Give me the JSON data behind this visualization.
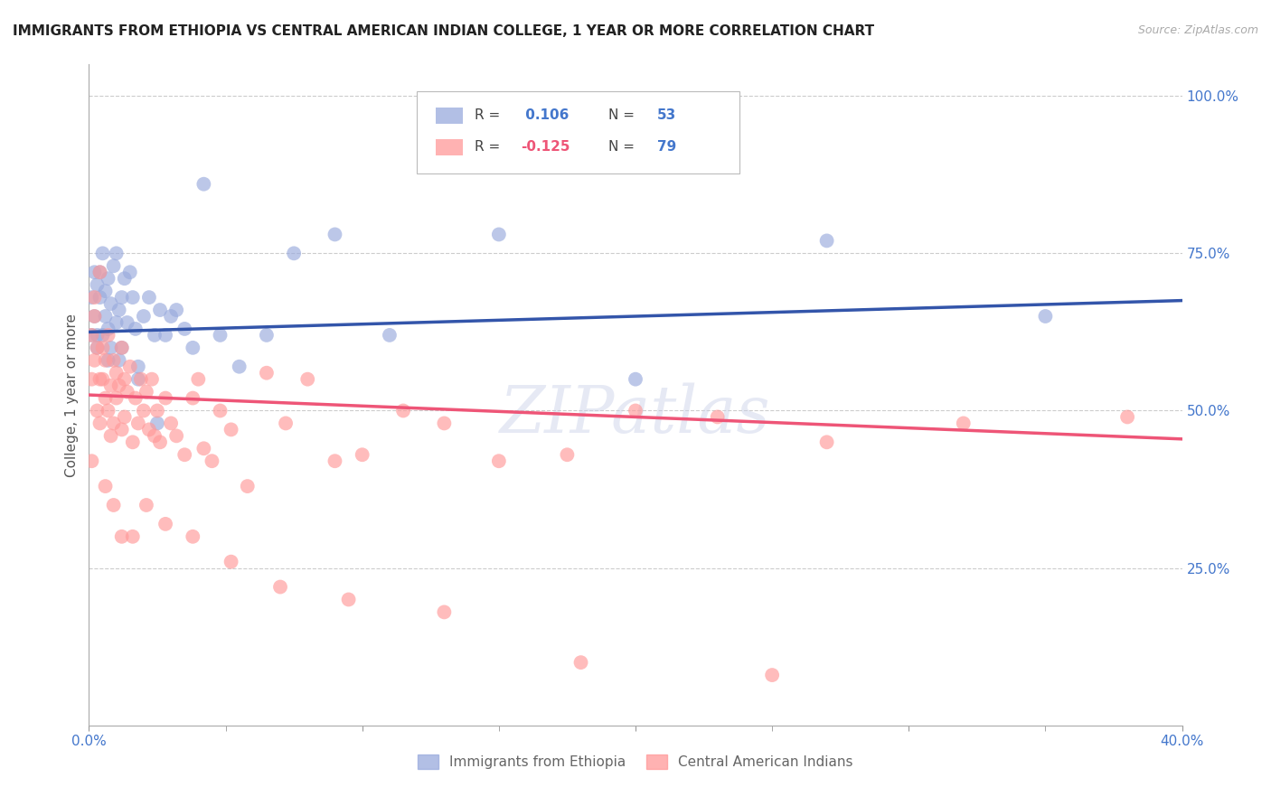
{
  "title": "IMMIGRANTS FROM ETHIOPIA VS CENTRAL AMERICAN INDIAN COLLEGE, 1 YEAR OR MORE CORRELATION CHART",
  "source": "Source: ZipAtlas.com",
  "ylabel": "College, 1 year or more",
  "ytick_labels": [
    "100.0%",
    "75.0%",
    "50.0%",
    "25.0%"
  ],
  "ytick_values": [
    1.0,
    0.75,
    0.5,
    0.25
  ],
  "xmin": 0.0,
  "xmax": 0.4,
  "ymin": 0.0,
  "ymax": 1.05,
  "color_blue": "#99AADD",
  "color_pink": "#FF9999",
  "color_blue_line": "#3355AA",
  "color_pink_line": "#EE5577",
  "color_text_blue": "#4477CC",
  "watermark": "ZIPatlas",
  "ethiopia_x": [
    0.001,
    0.001,
    0.002,
    0.002,
    0.003,
    0.003,
    0.004,
    0.004,
    0.005,
    0.005,
    0.006,
    0.006,
    0.007,
    0.007,
    0.008,
    0.008,
    0.009,
    0.01,
    0.01,
    0.011,
    0.011,
    0.012,
    0.013,
    0.014,
    0.015,
    0.016,
    0.017,
    0.018,
    0.02,
    0.022,
    0.024,
    0.026,
    0.028,
    0.03,
    0.032,
    0.035,
    0.038,
    0.042,
    0.048,
    0.055,
    0.065,
    0.075,
    0.09,
    0.11,
    0.15,
    0.2,
    0.27,
    0.35,
    0.003,
    0.007,
    0.012,
    0.018,
    0.025
  ],
  "ethiopia_y": [
    0.62,
    0.68,
    0.65,
    0.72,
    0.7,
    0.6,
    0.68,
    0.72,
    0.62,
    0.75,
    0.65,
    0.69,
    0.71,
    0.63,
    0.67,
    0.6,
    0.73,
    0.64,
    0.75,
    0.66,
    0.58,
    0.68,
    0.71,
    0.64,
    0.72,
    0.68,
    0.63,
    0.55,
    0.65,
    0.68,
    0.62,
    0.66,
    0.62,
    0.65,
    0.66,
    0.63,
    0.6,
    0.86,
    0.62,
    0.57,
    0.62,
    0.75,
    0.78,
    0.62,
    0.78,
    0.55,
    0.77,
    0.65,
    0.62,
    0.58,
    0.6,
    0.57,
    0.48
  ],
  "central_x": [
    0.001,
    0.001,
    0.002,
    0.002,
    0.003,
    0.003,
    0.004,
    0.004,
    0.005,
    0.005,
    0.006,
    0.006,
    0.007,
    0.007,
    0.008,
    0.008,
    0.009,
    0.009,
    0.01,
    0.01,
    0.011,
    0.012,
    0.012,
    0.013,
    0.013,
    0.014,
    0.015,
    0.016,
    0.017,
    0.018,
    0.019,
    0.02,
    0.021,
    0.022,
    0.023,
    0.024,
    0.025,
    0.026,
    0.028,
    0.03,
    0.032,
    0.035,
    0.038,
    0.04,
    0.042,
    0.045,
    0.048,
    0.052,
    0.058,
    0.065,
    0.072,
    0.08,
    0.09,
    0.1,
    0.115,
    0.13,
    0.15,
    0.175,
    0.2,
    0.23,
    0.27,
    0.32,
    0.38,
    0.001,
    0.002,
    0.004,
    0.006,
    0.009,
    0.012,
    0.016,
    0.021,
    0.028,
    0.038,
    0.052,
    0.07,
    0.095,
    0.13,
    0.18,
    0.25
  ],
  "central_y": [
    0.62,
    0.55,
    0.58,
    0.65,
    0.5,
    0.6,
    0.55,
    0.48,
    0.55,
    0.6,
    0.52,
    0.58,
    0.5,
    0.62,
    0.46,
    0.54,
    0.48,
    0.58,
    0.52,
    0.56,
    0.54,
    0.6,
    0.47,
    0.55,
    0.49,
    0.53,
    0.57,
    0.45,
    0.52,
    0.48,
    0.55,
    0.5,
    0.53,
    0.47,
    0.55,
    0.46,
    0.5,
    0.45,
    0.52,
    0.48,
    0.46,
    0.43,
    0.52,
    0.55,
    0.44,
    0.42,
    0.5,
    0.47,
    0.38,
    0.56,
    0.48,
    0.55,
    0.42,
    0.43,
    0.5,
    0.48,
    0.42,
    0.43,
    0.5,
    0.49,
    0.45,
    0.48,
    0.49,
    0.42,
    0.68,
    0.72,
    0.38,
    0.35,
    0.3,
    0.3,
    0.35,
    0.32,
    0.3,
    0.26,
    0.22,
    0.2,
    0.18,
    0.1,
    0.08
  ],
  "eth_line_x0": 0.0,
  "eth_line_x1": 0.4,
  "eth_line_y0": 0.625,
  "eth_line_y1": 0.675,
  "cen_line_x0": 0.0,
  "cen_line_x1": 0.4,
  "cen_line_y0": 0.525,
  "cen_line_y1": 0.455
}
